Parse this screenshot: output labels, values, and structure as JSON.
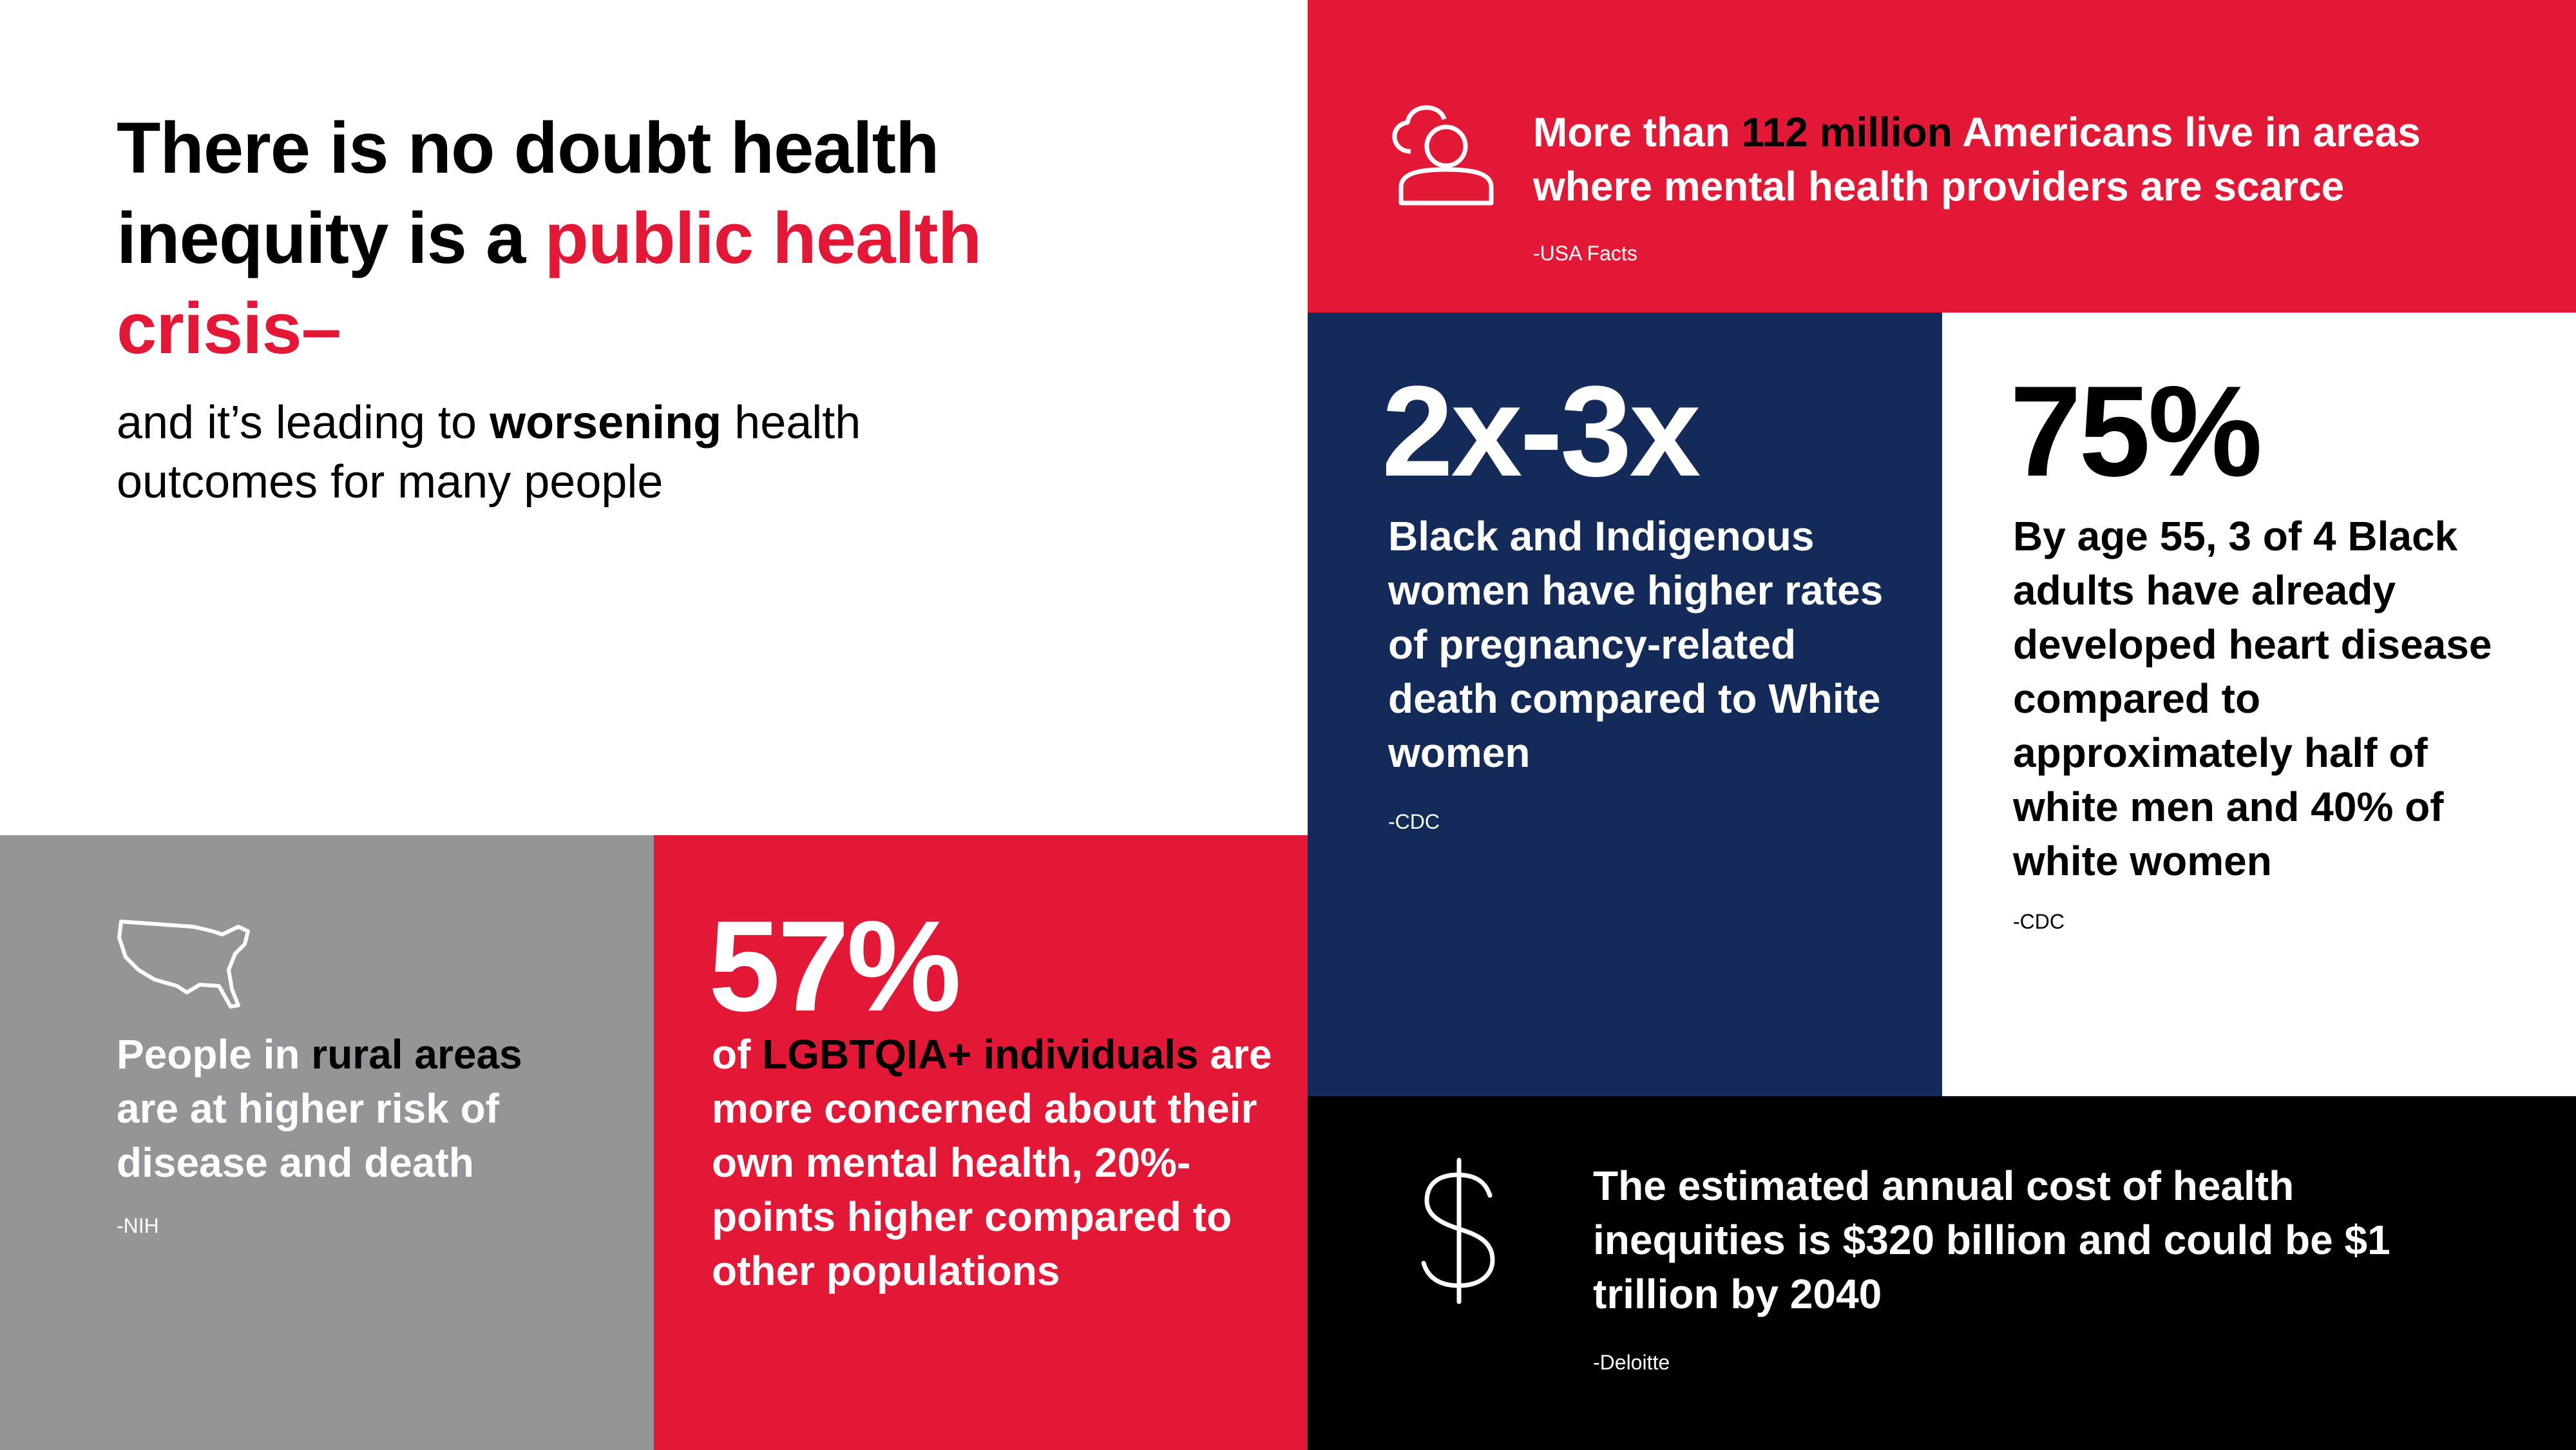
{
  "headline": {
    "lead": "There is no doubt health inequity is a",
    "highlight": "public health crisis–"
  },
  "subhead": {
    "before": "and it’s leading to ",
    "emphasis": "worsening",
    "after": " health outcomes for many people"
  },
  "cards": [
    {
      "before": "More than ",
      "emphasis": "112 million",
      "after": " Americans live in areas where mental health providers are scarce",
      "source": "-USA Facts"
    },
    {
      "stat": "2x-3x",
      "text": "Black and Indigenous women have higher rates of pregnancy-related death compared to White women",
      "source": "-CDC"
    },
    {
      "stat": "75%",
      "text": "By age 55, 3 of 4 Black adults have already developed heart disease compared to approximately half of white men and 40% of white women",
      "source": "-CDC"
    },
    {
      "before": "People in ",
      "emphasis": "rural areas",
      "after": " are at higher risk of disease and death",
      "source": "-NIH"
    },
    {
      "stat": "57%",
      "before": "of ",
      "emphasis": "LGBTQIA+ individuals",
      "after": " are more concerned about their own mental health, 20%-points higher compared to other populations"
    },
    {
      "text": "The estimated annual cost of health inequities is $320 billion and could be $1 trillion by 2040",
      "source": "-Deloitte"
    }
  ]
}
